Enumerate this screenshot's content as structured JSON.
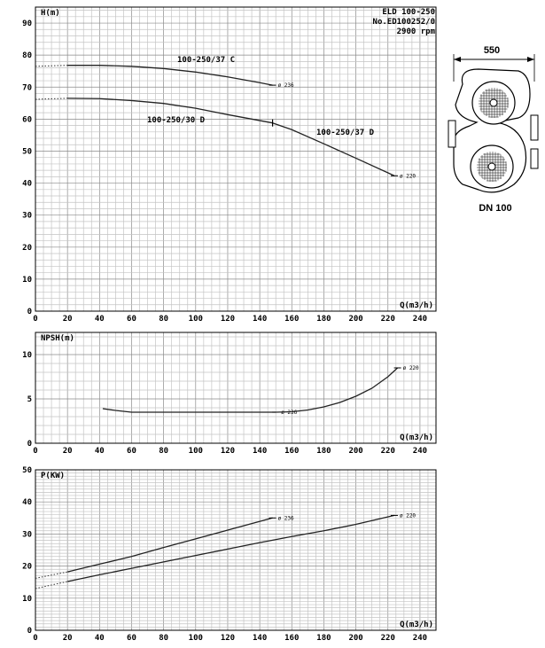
{
  "header": {
    "model": "ELD 100-250",
    "number": "No.ED100252/0",
    "speed": "2900 rpm"
  },
  "figure": {
    "dimension": "550",
    "flange": "DN 100"
  },
  "chart_data": [
    {
      "name": "head",
      "type": "line",
      "ylabel": "H(m)",
      "xlabel": "Q(m3/h)",
      "xlim": [
        0,
        250
      ],
      "ylim": [
        0,
        95
      ],
      "xticks": [
        0,
        20,
        40,
        60,
        80,
        100,
        120,
        140,
        160,
        180,
        200,
        220,
        240
      ],
      "yticks": [
        0,
        10,
        20,
        30,
        40,
        50,
        60,
        70,
        80,
        90
      ],
      "grid": true,
      "series": [
        {
          "name": "100-250/37 C",
          "diameter": "ø 236",
          "dotted_to": 20,
          "x": [
            0,
            20,
            40,
            60,
            80,
            100,
            120,
            140,
            148
          ],
          "y": [
            76.5,
            76.8,
            76.8,
            76.5,
            75.8,
            74.7,
            73.2,
            71.4,
            70.6
          ]
        },
        {
          "name": "100-250/30 D",
          "diameter": "",
          "dotted_to": 20,
          "x": [
            0,
            20,
            40,
            60,
            80,
            100,
            120,
            148
          ],
          "y": [
            66.2,
            66.5,
            66.4,
            65.8,
            64.9,
            63.4,
            61.4,
            58.8
          ]
        },
        {
          "name": "100-250/37 D",
          "diameter": "ø 220",
          "dotted_to": 0,
          "x": [
            148,
            160,
            180,
            200,
            224
          ],
          "y": [
            58.8,
            56.7,
            52.3,
            47.8,
            42.3
          ]
        }
      ]
    },
    {
      "name": "npsh",
      "type": "line",
      "ylabel": "NPSH(m)",
      "xlabel": "Q(m3/h)",
      "xlim": [
        0,
        250
      ],
      "ylim": [
        0,
        12.5
      ],
      "xticks": [
        0,
        20,
        40,
        60,
        80,
        100,
        120,
        140,
        160,
        180,
        200,
        220,
        240
      ],
      "yticks": [
        0,
        5,
        10
      ],
      "grid": true,
      "series": [
        {
          "name": "",
          "diameter": "ø 236",
          "dotted_to": 0,
          "x": [
            42,
            50,
            60,
            80,
            100,
            120,
            140,
            150
          ],
          "y": [
            3.9,
            3.7,
            3.5,
            3.5,
            3.5,
            3.5,
            3.5,
            3.5
          ]
        },
        {
          "name": "",
          "diameter": "ø 220",
          "dotted_to": 0,
          "x": [
            150,
            160,
            170,
            180,
            190,
            200,
            210,
            220,
            226
          ],
          "y": [
            3.5,
            3.55,
            3.75,
            4.1,
            4.6,
            5.3,
            6.2,
            7.5,
            8.5
          ]
        }
      ]
    },
    {
      "name": "power",
      "type": "line",
      "ylabel": "P(KW)",
      "xlabel": "Q(m3/h)",
      "xlim": [
        0,
        250
      ],
      "ylim": [
        0,
        50
      ],
      "xticks": [
        0,
        20,
        40,
        60,
        80,
        100,
        120,
        140,
        160,
        180,
        200,
        220,
        240
      ],
      "yticks": [
        0,
        10,
        20,
        30,
        40,
        50
      ],
      "grid": true,
      "series": [
        {
          "name": "",
          "diameter": "ø 236",
          "dotted_to": 20,
          "x": [
            0,
            20,
            40,
            60,
            80,
            100,
            120,
            148
          ],
          "y": [
            16.2,
            18.2,
            20.6,
            23.0,
            25.8,
            28.5,
            31.2,
            35.0
          ]
        },
        {
          "name": "",
          "diameter": "ø 220",
          "dotted_to": 20,
          "x": [
            0,
            20,
            40,
            60,
            80,
            100,
            120,
            140,
            160,
            180,
            200,
            224
          ],
          "y": [
            13.0,
            15.2,
            17.3,
            19.3,
            21.3,
            23.3,
            25.3,
            27.3,
            29.2,
            31.0,
            33.0,
            35.8
          ]
        }
      ]
    }
  ]
}
